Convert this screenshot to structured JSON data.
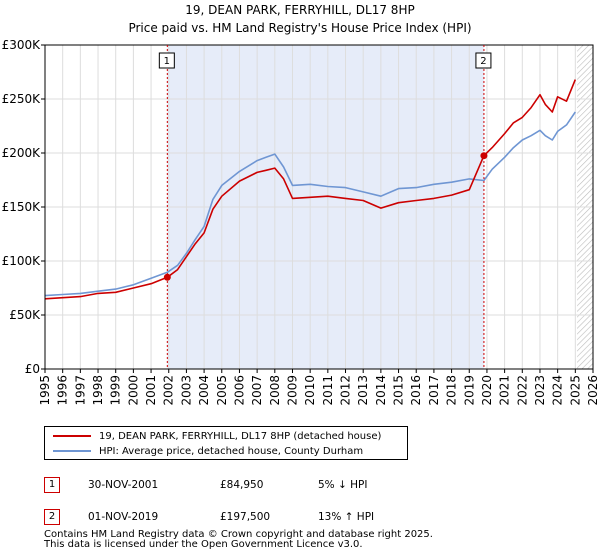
{
  "title": "19, DEAN PARK, FERRYHILL, DL17 8HP",
  "subtitle": "Price paid vs. HM Land Registry's House Price Index (HPI)",
  "legend": {
    "property": "19, DEAN PARK, FERRYHILL, DL17 8HP (detached house)",
    "hpi": "HPI: Average price, detached house, County Durham"
  },
  "sales": [
    {
      "num": "1",
      "date": "30-NOV-2001",
      "price": "£84,950",
      "change": "5% ↓ HPI"
    },
    {
      "num": "2",
      "date": "01-NOV-2019",
      "price": "£197,500",
      "change": "13% ↑ HPI"
    }
  ],
  "footer": {
    "line1": "Contains HM Land Registry data © Crown copyright and database right 2025.",
    "line2": "This data is licensed under the Open Government Licence v3.0."
  },
  "colors": {
    "property": "#cc0000",
    "hpi": "#6f96d3",
    "shade": "#e6ecf9",
    "hatch": "#bbbbbb"
  },
  "chart_data": {
    "type": "line",
    "title": "19, DEAN PARK, FERRYHILL, DL17 8HP",
    "subtitle": "Price paid vs. HM Land Registry's House Price Index (HPI)",
    "xlim": [
      1995,
      2026
    ],
    "ylim": [
      0,
      300000
    ],
    "x_ticks": [
      1995,
      1996,
      1997,
      1998,
      1999,
      2000,
      2001,
      2002,
      2003,
      2004,
      2005,
      2006,
      2007,
      2008,
      2009,
      2010,
      2011,
      2012,
      2013,
      2014,
      2015,
      2016,
      2017,
      2018,
      2019,
      2020,
      2021,
      2022,
      2023,
      2024,
      2025,
      2026
    ],
    "y_ticks": [
      0,
      50000,
      100000,
      150000,
      200000,
      250000,
      300000
    ],
    "y_tick_labels": [
      "£0",
      "£50K",
      "£100K",
      "£150K",
      "£200K",
      "£250K",
      "£300K"
    ],
    "shaded_range": [
      2001.92,
      2019.83
    ],
    "hatched_from": 2025.1,
    "markers": [
      {
        "label": "1",
        "x": 2001.92,
        "y": 84950
      },
      {
        "label": "2",
        "x": 2019.83,
        "y": 197500
      }
    ],
    "series": [
      {
        "name": "19, DEAN PARK, FERRYHILL, DL17 8HP (detached house)",
        "x": [
          1995,
          1996,
          1997,
          1998,
          1999,
          2000,
          2001,
          2001.92,
          2002.5,
          2003,
          2003.5,
          2004,
          2004.5,
          2005,
          2006,
          2007,
          2007.5,
          2008,
          2008.5,
          2009,
          2010,
          2011,
          2012,
          2013,
          2014,
          2015,
          2016,
          2017,
          2018,
          2019,
          2019.83,
          2020.3,
          2021,
          2021.5,
          2022,
          2022.5,
          2023,
          2023.3,
          2023.7,
          2024,
          2024.5,
          2025
        ],
        "values": [
          65000,
          66000,
          67000,
          70000,
          71000,
          75000,
          79000,
          84950,
          92000,
          104000,
          116000,
          126000,
          148000,
          160000,
          174000,
          182000,
          184000,
          186000,
          176000,
          158000,
          159000,
          160000,
          158000,
          156000,
          149000,
          154000,
          156000,
          158000,
          161000,
          166000,
          197500,
          205000,
          218000,
          228000,
          233000,
          242000,
          254000,
          245000,
          238000,
          252000,
          248000,
          268000
        ]
      },
      {
        "name": "HPI: Average price, detached house, County Durham",
        "x": [
          1995,
          1996,
          1997,
          1998,
          1999,
          2000,
          2001,
          2001.92,
          2002.5,
          2003,
          2003.5,
          2004,
          2004.5,
          2005,
          2006,
          2007,
          2007.5,
          2008,
          2008.5,
          2009,
          2010,
          2011,
          2012,
          2013,
          2014,
          2015,
          2016,
          2017,
          2018,
          2019,
          2019.83,
          2020.3,
          2021,
          2021.5,
          2022,
          2022.5,
          2023,
          2023.3,
          2023.7,
          2024,
          2024.5,
          2025
        ],
        "values": [
          68000,
          69000,
          70000,
          72000,
          74000,
          78000,
          84000,
          89500,
          96000,
          107000,
          120000,
          132000,
          157000,
          170000,
          183000,
          193000,
          196000,
          199000,
          187000,
          170000,
          171000,
          169000,
          168000,
          164000,
          160000,
          167000,
          168000,
          171000,
          173000,
          176000,
          174500,
          185000,
          196000,
          205000,
          212000,
          216000,
          221000,
          216000,
          212000,
          220000,
          226000,
          238000
        ]
      }
    ]
  }
}
